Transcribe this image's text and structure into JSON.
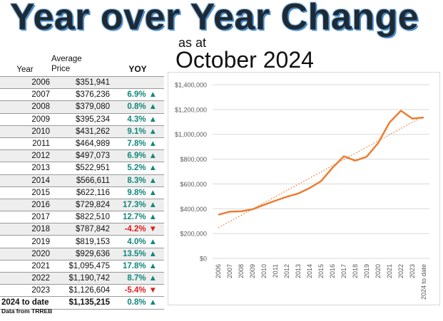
{
  "header": {
    "title": "Year over Year Change",
    "as_at": "as at",
    "month": "October 2024"
  },
  "table": {
    "col_year": "Year",
    "col_price_line1": "Average",
    "col_price_line2": "Price",
    "col_yoy": "YOY",
    "rows": [
      {
        "year": "2006",
        "price": "$351,941",
        "yoy": "",
        "dir": ""
      },
      {
        "year": "2007",
        "price": "$376,236",
        "yoy": "6.9%",
        "dir": "up"
      },
      {
        "year": "2008",
        "price": "$379,080",
        "yoy": "0.8%",
        "dir": "up"
      },
      {
        "year": "2009",
        "price": "$395,234",
        "yoy": "4.3%",
        "dir": "up"
      },
      {
        "year": "2010",
        "price": "$431,262",
        "yoy": "9.1%",
        "dir": "up"
      },
      {
        "year": "2011",
        "price": "$464,989",
        "yoy": "7.8%",
        "dir": "up"
      },
      {
        "year": "2012",
        "price": "$497,073",
        "yoy": "6.9%",
        "dir": "up"
      },
      {
        "year": "2013",
        "price": "$522,951",
        "yoy": "5.2%",
        "dir": "up"
      },
      {
        "year": "2014",
        "price": "$566,611",
        "yoy": "8.3%",
        "dir": "up"
      },
      {
        "year": "2015",
        "price": "$622,116",
        "yoy": "9.8%",
        "dir": "up"
      },
      {
        "year": "2016",
        "price": "$729,824",
        "yoy": "17.3%",
        "dir": "up"
      },
      {
        "year": "2017",
        "price": "$822,510",
        "yoy": "12.7%",
        "dir": "up"
      },
      {
        "year": "2018",
        "price": "$787,842",
        "yoy": "-4.2%",
        "dir": "down"
      },
      {
        "year": "2019",
        "price": "$819,153",
        "yoy": "4.0%",
        "dir": "up"
      },
      {
        "year": "2020",
        "price": "$929,636",
        "yoy": "13.5%",
        "dir": "up"
      },
      {
        "year": "2021",
        "price": "$1,095,475",
        "yoy": "17.8%",
        "dir": "up"
      },
      {
        "year": "2022",
        "price": "$1,190,742",
        "yoy": "8.7%",
        "dir": "up"
      },
      {
        "year": "2023",
        "price": "$1,126,604",
        "yoy": "-5.4%",
        "dir": "down"
      },
      {
        "year": "2024 to date",
        "price": "$1,135,215",
        "yoy": "0.8%",
        "dir": "up"
      }
    ]
  },
  "source": "Data from TRREB",
  "chart_data": {
    "type": "line",
    "title": "",
    "xlabel": "",
    "ylabel": "",
    "x": [
      "2006",
      "2007",
      "2008",
      "2009",
      "2010",
      "2011",
      "2012",
      "2013",
      "2014",
      "2015",
      "2016",
      "2017",
      "2018",
      "2019",
      "2020",
      "2021",
      "2022",
      "2023",
      "2024 to date"
    ],
    "series": [
      {
        "name": "Average Price",
        "color": "#ed7d31",
        "values": [
          351941,
          376236,
          379080,
          395234,
          431262,
          464989,
          497073,
          522951,
          566611,
          622116,
          729824,
          822510,
          787842,
          819153,
          929636,
          1095475,
          1190742,
          1126604,
          1135215
        ]
      }
    ],
    "trendline": {
      "type": "linear",
      "style": "dotted",
      "color": "#ed7d31"
    },
    "ylim": [
      0,
      1400000
    ],
    "yticks": [
      0,
      200000,
      400000,
      600000,
      800000,
      1000000,
      1200000,
      1400000
    ],
    "ytick_labels": [
      "$0",
      "$200,000",
      "$400,000",
      "$600,000",
      "$800,000",
      "$1,000,000",
      "$1,200,000",
      "$1,400,000"
    ],
    "grid": true,
    "legend": "none"
  },
  "colors": {
    "up": "#12877c",
    "down": "#e21b1b",
    "line": "#ed7d31",
    "grid": "#d9d9d9"
  }
}
